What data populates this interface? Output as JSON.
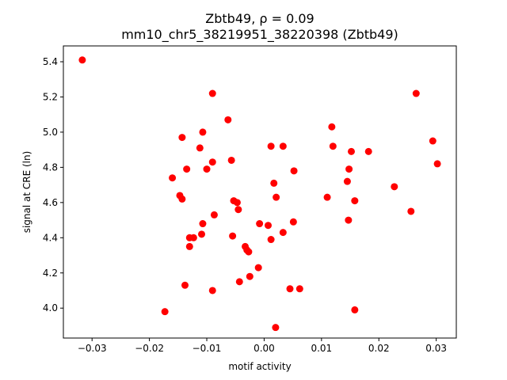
{
  "chart_data": {
    "type": "scatter",
    "title_line1": "Zbtb49, ρ = 0.09",
    "title_line2": "mm10_chr5_38219951_38220398 (Zbtb49)",
    "xlabel": "motif activity",
    "ylabel": "signal at CRE (ln)",
    "xlim": [
      -0.035,
      0.0335
    ],
    "ylim": [
      3.83,
      5.49
    ],
    "xticks": [
      -0.03,
      -0.02,
      -0.01,
      0.0,
      0.01,
      0.02,
      0.03
    ],
    "xtick_labels": [
      "−0.03",
      "−0.02",
      "−0.01",
      "0.00",
      "0.01",
      "0.02",
      "0.03"
    ],
    "yticks": [
      4.0,
      4.2,
      4.4,
      4.6,
      4.8,
      5.0,
      5.2,
      5.4
    ],
    "ytick_labels": [
      "4.0",
      "4.2",
      "4.4",
      "4.6",
      "4.8",
      "5.0",
      "5.2",
      "5.4"
    ],
    "grid": false,
    "marker_color": "#ff0000",
    "points": [
      {
        "x": -0.0317,
        "y": 5.41
      },
      {
        "x": -0.009,
        "y": 5.22
      },
      {
        "x": 0.0265,
        "y": 5.22
      },
      {
        "x": -0.0063,
        "y": 5.07
      },
      {
        "x": 0.0118,
        "y": 5.03
      },
      {
        "x": -0.0107,
        "y": 5.0
      },
      {
        "x": -0.0143,
        "y": 4.97
      },
      {
        "x": 0.0294,
        "y": 4.95
      },
      {
        "x": 0.0012,
        "y": 4.92
      },
      {
        "x": 0.0033,
        "y": 4.92
      },
      {
        "x": 0.012,
        "y": 4.92
      },
      {
        "x": -0.0112,
        "y": 4.91
      },
      {
        "x": 0.0152,
        "y": 4.89
      },
      {
        "x": 0.0182,
        "y": 4.89
      },
      {
        "x": -0.0057,
        "y": 4.84
      },
      {
        "x": -0.009,
        "y": 4.83
      },
      {
        "x": 0.0302,
        "y": 4.82
      },
      {
        "x": -0.0135,
        "y": 4.79
      },
      {
        "x": -0.01,
        "y": 4.79
      },
      {
        "x": 0.0148,
        "y": 4.79
      },
      {
        "x": 0.0052,
        "y": 4.78
      },
      {
        "x": -0.016,
        "y": 4.74
      },
      {
        "x": 0.0145,
        "y": 4.72
      },
      {
        "x": 0.0017,
        "y": 4.71
      },
      {
        "x": 0.0227,
        "y": 4.69
      },
      {
        "x": -0.0147,
        "y": 4.64
      },
      {
        "x": 0.0021,
        "y": 4.63
      },
      {
        "x": 0.011,
        "y": 4.63
      },
      {
        "x": -0.0143,
        "y": 4.62
      },
      {
        "x": 0.0158,
        "y": 4.61
      },
      {
        "x": -0.0053,
        "y": 4.61
      },
      {
        "x": -0.0047,
        "y": 4.6
      },
      {
        "x": -0.0045,
        "y": 4.56
      },
      {
        "x": 0.0256,
        "y": 4.55
      },
      {
        "x": -0.0087,
        "y": 4.53
      },
      {
        "x": 0.0147,
        "y": 4.5
      },
      {
        "x": 0.0051,
        "y": 4.49
      },
      {
        "x": -0.0107,
        "y": 4.48
      },
      {
        "x": -0.0008,
        "y": 4.48
      },
      {
        "x": 0.0007,
        "y": 4.47
      },
      {
        "x": 0.0033,
        "y": 4.43
      },
      {
        "x": -0.0109,
        "y": 4.42
      },
      {
        "x": -0.0055,
        "y": 4.41
      },
      {
        "x": -0.0123,
        "y": 4.4
      },
      {
        "x": -0.013,
        "y": 4.4
      },
      {
        "x": 0.0012,
        "y": 4.39
      },
      {
        "x": -0.013,
        "y": 4.35
      },
      {
        "x": -0.0033,
        "y": 4.35
      },
      {
        "x": -0.003,
        "y": 4.33
      },
      {
        "x": -0.0027,
        "y": 4.32
      },
      {
        "x": -0.001,
        "y": 4.23
      },
      {
        "x": -0.0025,
        "y": 4.18
      },
      {
        "x": -0.0043,
        "y": 4.15
      },
      {
        "x": -0.0138,
        "y": 4.13
      },
      {
        "x": 0.0045,
        "y": 4.11
      },
      {
        "x": 0.0062,
        "y": 4.11
      },
      {
        "x": -0.009,
        "y": 4.1
      },
      {
        "x": -0.0173,
        "y": 3.98
      },
      {
        "x": 0.0158,
        "y": 3.99
      },
      {
        "x": 0.002,
        "y": 3.89
      }
    ]
  }
}
